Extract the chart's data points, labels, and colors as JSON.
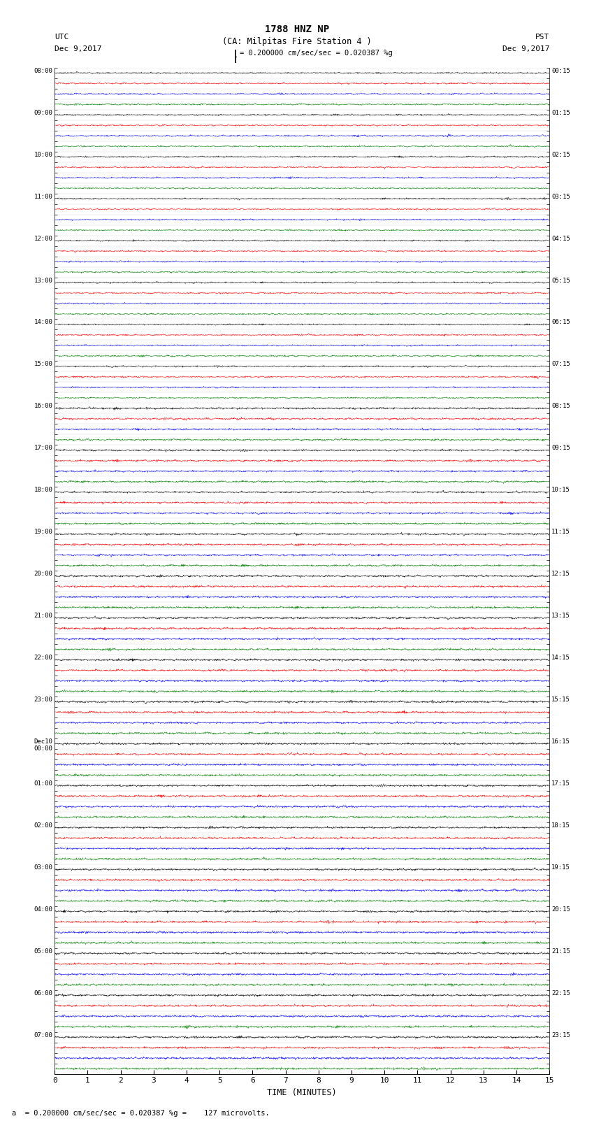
{
  "title_line1": "1788 HNZ NP",
  "title_line2": "(CA: Milpitas Fire Station 4 )",
  "scale_text": "= 0.200000 cm/sec/sec = 0.020387 %g",
  "footer_text": "a  = 0.200000 cm/sec/sec = 0.020387 %g =    127 microvolts.",
  "utc_label": "UTC",
  "pst_label": "PST",
  "date_left": "Dec 9,2017",
  "date_right": "Dec 9,2017",
  "xlabel": "TIME (MINUTES)",
  "left_times": [
    "08:00",
    "",
    "",
    "",
    "09:00",
    "",
    "",
    "",
    "10:00",
    "",
    "",
    "",
    "11:00",
    "",
    "",
    "",
    "12:00",
    "",
    "",
    "",
    "13:00",
    "",
    "",
    "",
    "14:00",
    "",
    "",
    "",
    "15:00",
    "",
    "",
    "",
    "16:00",
    "",
    "",
    "",
    "17:00",
    "",
    "",
    "",
    "18:00",
    "",
    "",
    "",
    "19:00",
    "",
    "",
    "",
    "20:00",
    "",
    "",
    "",
    "21:00",
    "",
    "",
    "",
    "22:00",
    "",
    "",
    "",
    "23:00",
    "",
    "",
    "",
    "Dec10\n00:00",
    "",
    "",
    "",
    "01:00",
    "",
    "",
    "",
    "02:00",
    "",
    "",
    "",
    "03:00",
    "",
    "",
    "",
    "04:00",
    "",
    "",
    "",
    "05:00",
    "",
    "",
    "",
    "06:00",
    "",
    "",
    "",
    "07:00",
    "",
    "",
    ""
  ],
  "right_times": [
    "00:15",
    "",
    "",
    "",
    "01:15",
    "",
    "",
    "",
    "02:15",
    "",
    "",
    "",
    "03:15",
    "",
    "",
    "",
    "04:15",
    "",
    "",
    "",
    "05:15",
    "",
    "",
    "",
    "06:15",
    "",
    "",
    "",
    "07:15",
    "",
    "",
    "",
    "08:15",
    "",
    "",
    "",
    "09:15",
    "",
    "",
    "",
    "10:15",
    "",
    "",
    "",
    "11:15",
    "",
    "",
    "",
    "12:15",
    "",
    "",
    "",
    "13:15",
    "",
    "",
    "",
    "14:15",
    "",
    "",
    "",
    "15:15",
    "",
    "",
    "",
    "16:15",
    "",
    "",
    "",
    "17:15",
    "",
    "",
    "",
    "18:15",
    "",
    "",
    "",
    "19:15",
    "",
    "",
    "",
    "20:15",
    "",
    "",
    "",
    "21:15",
    "",
    "",
    "",
    "22:15",
    "",
    "",
    "",
    "23:15",
    "",
    "",
    ""
  ],
  "trace_colors": [
    "black",
    "red",
    "blue",
    "green"
  ],
  "n_rows": 96,
  "n_points": 1800,
  "x_min": 0,
  "x_max": 15,
  "background_color": "white",
  "fig_width": 8.5,
  "fig_height": 16.13,
  "dpi": 100
}
